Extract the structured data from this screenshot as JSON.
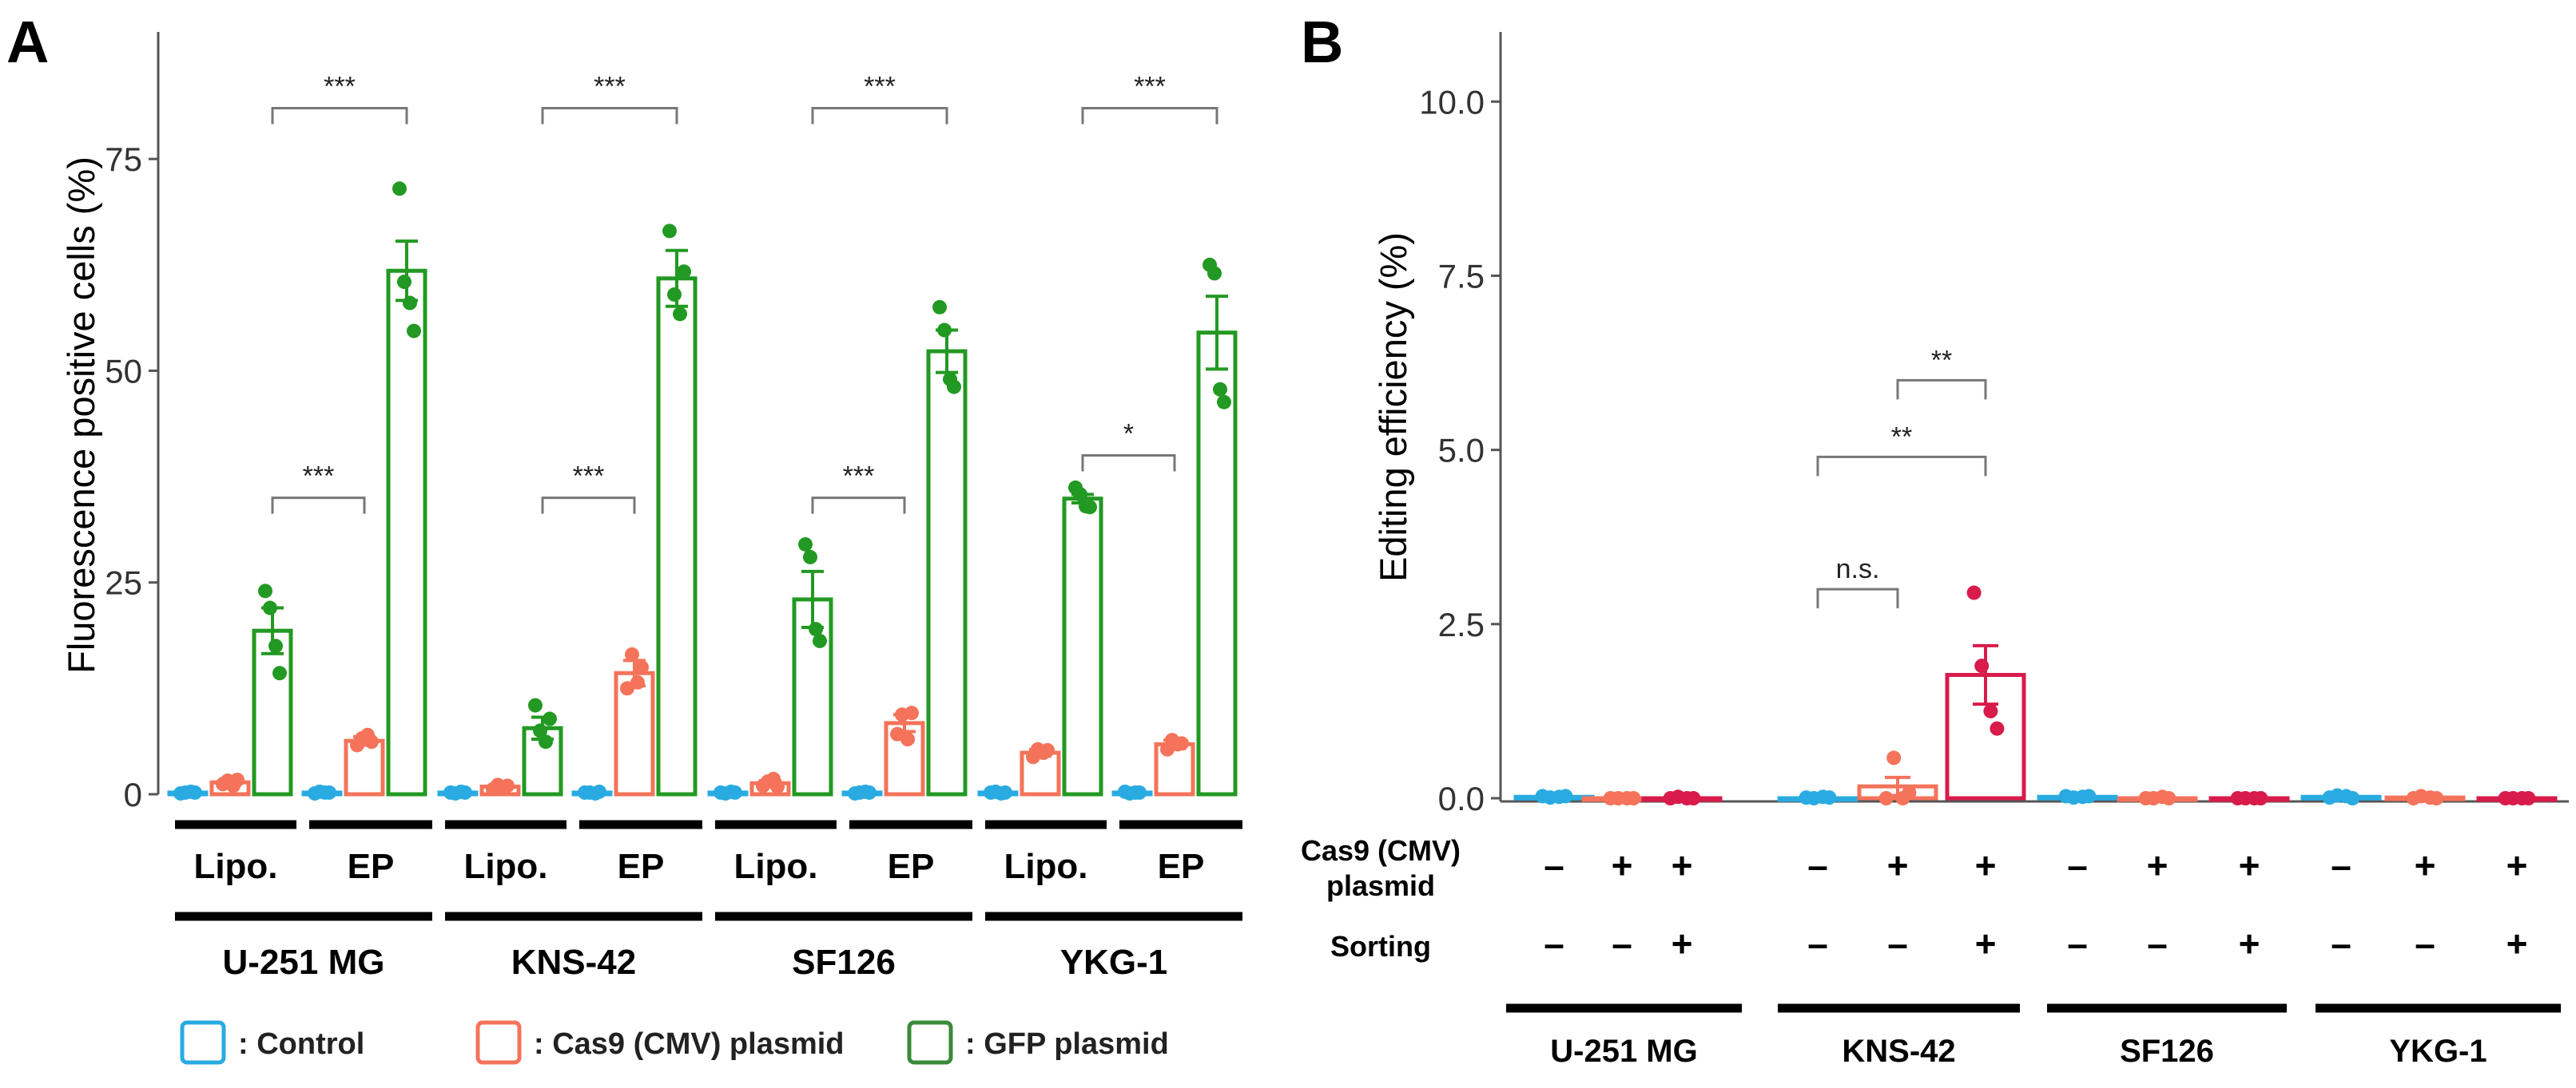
{
  "panels": {
    "A": {
      "label": "A"
    },
    "B": {
      "label": "B"
    }
  },
  "chart_data": [
    {
      "type": "bar",
      "panel": "A",
      "ylabel": "Fluorescence positive cells (%)",
      "ylim": [
        0,
        90
      ],
      "yticks": [
        "0",
        "25",
        "50",
        "75"
      ],
      "cell_lines": [
        "U-251 MG",
        "KNS-42",
        "SF126",
        "YKG-1"
      ],
      "methods": [
        "Lipo.",
        "EP"
      ],
      "series": [
        {
          "name": "Control",
          "color": "#29abe2",
          "values": [
            0.2,
            0.2,
            0.2,
            0.2,
            0.2,
            0.2,
            0.2,
            0.2
          ],
          "errors": [
            0,
            0,
            0,
            0,
            0,
            0,
            0,
            0
          ],
          "points": [
            [
              0.1,
              0.2,
              0.3,
              0.2
            ],
            [
              0.1,
              0.3,
              0.2,
              0.2
            ],
            [
              0.2,
              0.1,
              0.3,
              0.2
            ],
            [
              0.2,
              0.2,
              0.1,
              0.3
            ],
            [
              0.2,
              0.1,
              0.3,
              0.2
            ],
            [
              0.1,
              0.2,
              0.3,
              0.2
            ],
            [
              0.2,
              0.3,
              0.1,
              0.2
            ],
            [
              0.3,
              0.1,
              0.2,
              0.2
            ]
          ]
        },
        {
          "name": "Cas9 (CMV) plasmid",
          "color": "#f4735a",
          "values": [
            1.4,
            6.3,
            0.9,
            14.3,
            1.3,
            8.4,
            4.9,
            5.9
          ],
          "errors": [
            0.3,
            0.5,
            0.2,
            1.5,
            0.3,
            1.0,
            0.4,
            0.5
          ],
          "points": [
            [
              1.2,
              1.6,
              1.0,
              1.7
            ],
            [
              5.8,
              6.6,
              7.0,
              6.2
            ],
            [
              0.6,
              1.1,
              0.8,
              1.0
            ],
            [
              12.5,
              16.5,
              13.2,
              15.0
            ],
            [
              1.0,
              1.5,
              1.8,
              0.9
            ],
            [
              7.1,
              9.4,
              6.5,
              9.6
            ],
            [
              4.4,
              5.3,
              4.9,
              5.2
            ],
            [
              5.3,
              6.4,
              5.9,
              6.0
            ]
          ]
        },
        {
          "name": "GFP plasmid",
          "color": "#229922",
          "values": [
            19.3,
            61.8,
            7.8,
            60.9,
            23.0,
            52.3,
            34.9,
            54.5
          ],
          "errors": [
            2.7,
            3.5,
            1.3,
            3.3,
            3.3,
            2.5,
            0.5,
            4.3
          ],
          "points": [
            [
              24.0,
              22.0,
              17.5,
              14.3
            ],
            [
              71.5,
              60.5,
              58.0,
              54.7
            ],
            [
              10.5,
              7.5,
              6.2,
              8.9
            ],
            [
              66.5,
              59.0,
              56.7,
              61.7
            ],
            [
              29.5,
              28.0,
              19.5,
              18.1
            ],
            [
              57.5,
              54.8,
              49.0,
              48.1
            ],
            [
              36.2,
              35.4,
              34.0,
              33.9
            ],
            [
              62.5,
              61.5,
              47.8,
              46.3
            ]
          ]
        }
      ],
      "significance": [
        {
          "line": "U-251 MG",
          "from": "Lipo. GFP",
          "to": "EP GFP",
          "label": "***",
          "y": 81
        },
        {
          "line": "U-251 MG",
          "from": "Lipo. GFP",
          "to": "EP Cas9",
          "label": "***",
          "y": 35
        },
        {
          "line": "KNS-42",
          "from": "Lipo. GFP",
          "to": "EP GFP",
          "label": "***",
          "y": 81
        },
        {
          "line": "KNS-42",
          "from": "Lipo. GFP",
          "to": "EP Cas9",
          "label": "***",
          "y": 35
        },
        {
          "line": "SF126",
          "from": "Lipo. GFP",
          "to": "EP GFP",
          "label": "***",
          "y": 81
        },
        {
          "line": "SF126",
          "from": "Lipo. GFP",
          "to": "EP Cas9",
          "label": "***",
          "y": 35
        },
        {
          "line": "YKG-1",
          "from": "Lipo. GFP",
          "to": "EP GFP",
          "label": "***",
          "y": 81
        },
        {
          "line": "YKG-1",
          "from": "Lipo. GFP",
          "to": "EP Cas9",
          "label": "*",
          "y": 40
        }
      ],
      "legend": [
        {
          "name": ": Control",
          "color": "#29abe2"
        },
        {
          "name": ": Cas9 (CMV) plasmid",
          "color": "#f4735a"
        },
        {
          "name": ": GFP plasmid",
          "color": "#3a8a3a"
        }
      ]
    },
    {
      "type": "bar",
      "panel": "B",
      "ylabel": "Editing efficiency (%)",
      "ylim": [
        0,
        11.0
      ],
      "yticks": [
        "0.0",
        "2.5",
        "5.0",
        "7.5",
        "10.0"
      ],
      "cell_lines": [
        "U-251 MG",
        "KNS-42",
        "SF126",
        "YKG-1"
      ],
      "conditions": [
        {
          "cas9": "–",
          "sorting": "–"
        },
        {
          "cas9": "+",
          "sorting": "–"
        },
        {
          "cas9": "+",
          "sorting": "+"
        }
      ],
      "row_labels": {
        "cas9": "Cas9 (CMV)\nplasmid",
        "sorting": "Sorting"
      },
      "colors": [
        "#29abe2",
        "#f4735a",
        "#d81b4a"
      ],
      "values": [
        0.02,
        0.0,
        0.0,
        0.0,
        0.17,
        1.77,
        0.02,
        0.0,
        0.0,
        0.02,
        0.01,
        0.0
      ],
      "errors": [
        0,
        0,
        0,
        0,
        0.13,
        0.42,
        0,
        0,
        0,
        0,
        0,
        0
      ],
      "points": [
        [
          0.03,
          0.01,
          0.02,
          0.03
        ],
        [
          0,
          0,
          0,
          0
        ],
        [
          0,
          0.02,
          0,
          0
        ],
        [
          0.01,
          0.0,
          0.02,
          0.01
        ],
        [
          0.0,
          0.58,
          0.0,
          0.08
        ],
        [
          2.95,
          1.9,
          1.25,
          1.0
        ],
        [
          0.03,
          0.01,
          0.02,
          0.03
        ],
        [
          0.0,
          0.0,
          0.02,
          0.0
        ],
        [
          0,
          0,
          0,
          0
        ],
        [
          0.01,
          0.04,
          0.03,
          0.0
        ],
        [
          0.0,
          0.03,
          0.01,
          0.0
        ],
        [
          0,
          0,
          0,
          0
        ]
      ],
      "significance": [
        {
          "from": "KNS-42 +/–",
          "to": "KNS-42 +/+",
          "label": "**",
          "y": 6.0
        },
        {
          "from": "KNS-42 –/–",
          "to": "KNS-42 +/+",
          "label": "**",
          "y": 4.9
        },
        {
          "from": "KNS-42 –/–",
          "to": "KNS-42 +/–",
          "label": "n.s.",
          "y": 3.0
        }
      ]
    }
  ]
}
